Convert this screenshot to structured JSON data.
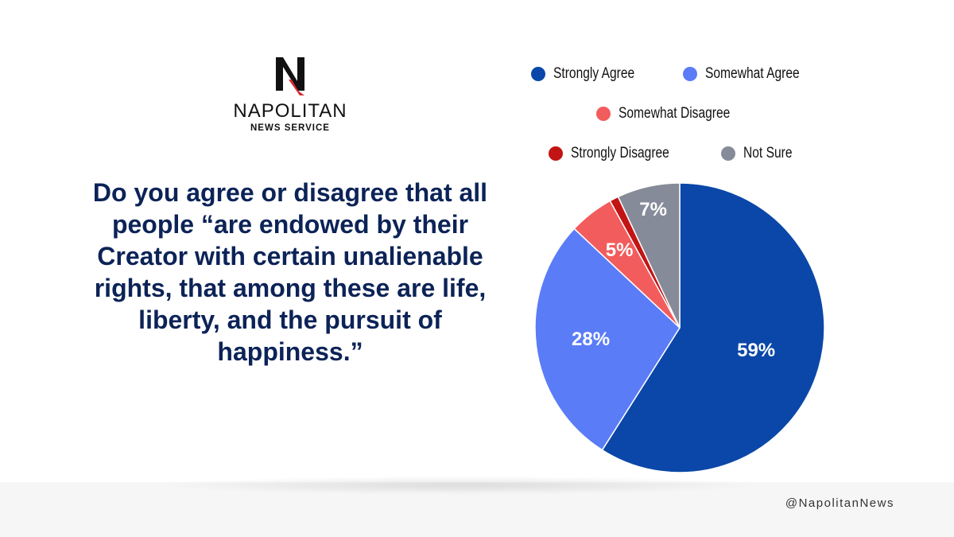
{
  "brand": {
    "name": "NAPOLITAN",
    "subname": "NEWS SERVICE",
    "logo_letter": "N",
    "logo_color": "#111111",
    "logo_accent_color": "#d62b2b"
  },
  "question": "Do you agree or disagree that all people “are endowed by their Creator with certain unalienable rights, that among these are life, liberty, and the pursuit of happiness.”",
  "handle": "@NapolitanNews",
  "chart_data": {
    "type": "pie",
    "title": "",
    "slices": [
      {
        "label": "Strongly Agree",
        "value": 59,
        "value_label": "59%",
        "color": "#0a47a8"
      },
      {
        "label": "Somewhat Agree",
        "value": 28,
        "value_label": "28%",
        "color": "#5b7cf7"
      },
      {
        "label": "Somewhat Disagree",
        "value": 5,
        "value_label": "5%",
        "color": "#f25c5c"
      },
      {
        "label": "Strongly Disagree",
        "value": 1,
        "value_label": "",
        "color": "#c21414"
      },
      {
        "label": "Not Sure",
        "value": 7,
        "value_label": "7%",
        "color": "#868b99"
      }
    ],
    "legend_position": "top"
  }
}
